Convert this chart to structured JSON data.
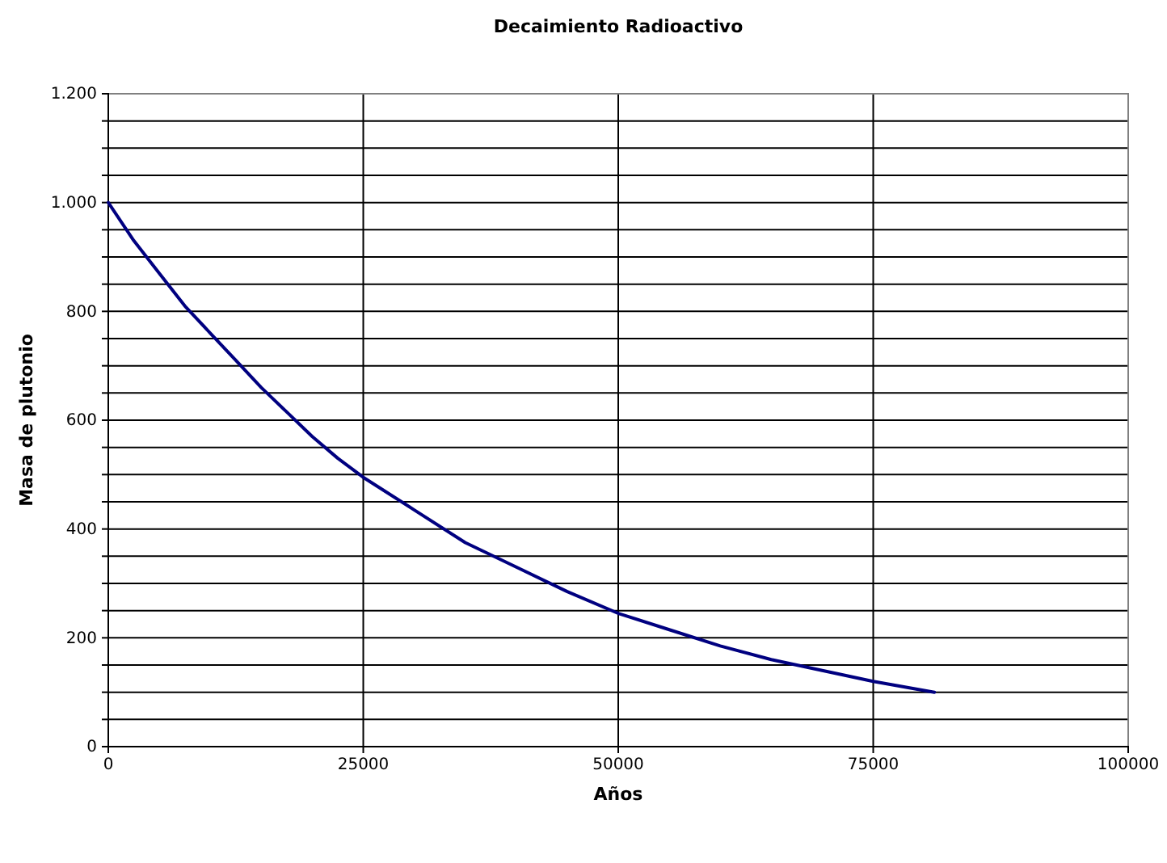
{
  "chart_data": {
    "type": "line",
    "title": "Decaimiento Radioactivo",
    "xlabel": "Años",
    "ylabel": "Masa de plutonio",
    "x": [
      0,
      2500,
      5000,
      7500,
      10000,
      12500,
      15000,
      17500,
      20000,
      22500,
      25000,
      30000,
      35000,
      40000,
      45000,
      50000,
      55000,
      60000,
      65000,
      70000,
      75000,
      81000
    ],
    "series": [
      {
        "color": "#000080",
        "values": [
          1000,
          930,
          870,
          810,
          760,
          710,
          660,
          615,
          570,
          530,
          495,
          435,
          375,
          330,
          285,
          245,
          215,
          185,
          160,
          140,
          120,
          100
        ]
      }
    ],
    "xlim": [
      0,
      100000
    ],
    "xticks": [
      0,
      25000,
      50000,
      75000,
      100000
    ],
    "ylim": [
      0,
      1200
    ],
    "yticks": [
      0,
      {
        "value": 50,
        "label": null
      },
      {
        "value": 100,
        "label": null
      },
      {
        "value": 150,
        "label": null
      },
      200,
      {
        "value": 250,
        "label": null
      },
      {
        "value": 300,
        "label": null
      },
      {
        "value": 350,
        "label": null
      },
      400,
      {
        "value": 450,
        "label": null
      },
      {
        "value": 500,
        "label": null
      },
      {
        "value": 550,
        "label": null
      },
      600,
      {
        "value": 650,
        "label": null
      },
      {
        "value": 700,
        "label": null
      },
      {
        "value": 750,
        "label": null
      },
      800,
      {
        "value": 850,
        "label": null
      },
      {
        "value": 900,
        "label": null
      },
      {
        "value": 950,
        "label": null
      },
      {
        "value": 1000,
        "label": "1.000"
      },
      {
        "value": 1050,
        "label": null
      },
      {
        "value": 1100,
        "label": null
      },
      {
        "value": 1150,
        "label": null
      },
      {
        "value": 1200,
        "label": "1.200"
      }
    ],
    "grid": true,
    "marker": "none",
    "line_style": "solid"
  }
}
